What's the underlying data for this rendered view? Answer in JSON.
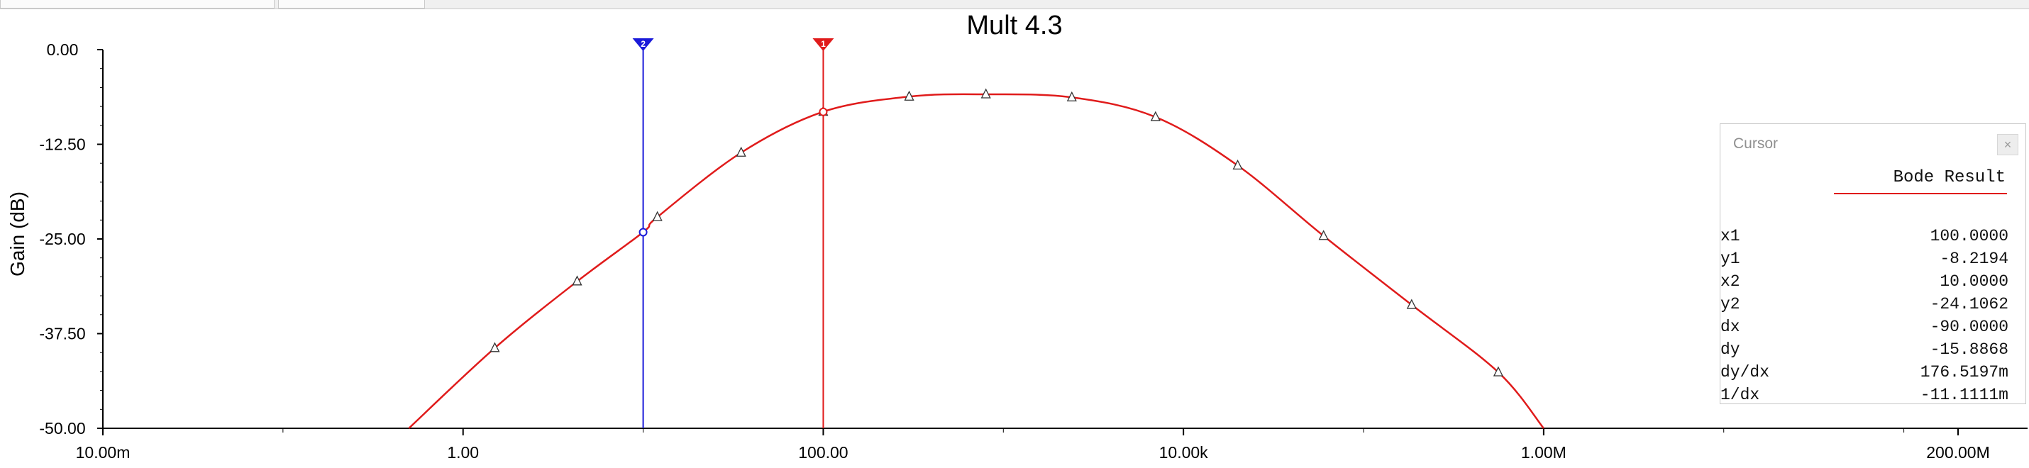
{
  "chart_data": {
    "type": "line",
    "title": "Mult 4.3",
    "xlabel": "",
    "ylabel": "Gain (dB)",
    "x_scale": "log",
    "xlim": [
      0.01,
      200000000
    ],
    "ylim": [
      -50,
      0
    ],
    "x_ticks": [
      {
        "value": 0.01,
        "label": "10.00m"
      },
      {
        "value": 1,
        "label": "1.00"
      },
      {
        "value": 100,
        "label": "100.00"
      },
      {
        "value": 10000,
        "label": "10.00k"
      },
      {
        "value": 1000000,
        "label": "1.00M"
      },
      {
        "value": 200000000,
        "label": "200.00M"
      }
    ],
    "y_ticks": [
      {
        "value": 0,
        "label": "0.00"
      },
      {
        "value": -12.5,
        "label": "-12.50"
      },
      {
        "value": -25,
        "label": "-25.00"
      },
      {
        "value": -37.5,
        "label": "-37.50"
      },
      {
        "value": -50,
        "label": "-50.00"
      }
    ],
    "grid": false,
    "series": [
      {
        "color": "#e01b1b",
        "marker": "triangle",
        "x": [
          0.5,
          1.5,
          4.3,
          10,
          12,
          35,
          100,
          300,
          800,
          2400,
          7000,
          20000,
          60000,
          185000,
          560000,
          1000000
        ],
        "y": [
          -50,
          -39.4,
          -30.6,
          -24.1,
          -22.1,
          -13.6,
          -8.2,
          -6.2,
          -5.9,
          -6.3,
          -8.9,
          -15.3,
          -24.6,
          -33.7,
          -42.6,
          -50
        ],
        "marker_x": [
          1.5,
          4.3,
          12,
          35,
          100,
          300,
          800,
          2400,
          7000,
          20000,
          60000,
          185000,
          560000
        ]
      }
    ],
    "cursors": [
      {
        "label": "1",
        "x": 100,
        "y": -8.2194,
        "color": "#e01b1b"
      },
      {
        "label": "2",
        "x": 10,
        "y": -24.1062,
        "color": "#1a1ad9"
      }
    ]
  },
  "cursor_panel": {
    "title": "Cursor",
    "close_glyph": "×",
    "series_name": "Bode Result",
    "rows": [
      {
        "key": "x1",
        "value": "100.0000"
      },
      {
        "key": "y1",
        "value": "-8.2194"
      },
      {
        "key": "x2",
        "value": "10.0000"
      },
      {
        "key": "y2",
        "value": "-24.1062"
      },
      {
        "key": "dx",
        "value": "-90.0000"
      },
      {
        "key": "dy",
        "value": "-15.8868"
      },
      {
        "key": "dy/dx",
        "value": "176.5197m"
      },
      {
        "key": "1/dx",
        "value": "-11.1111m"
      }
    ]
  }
}
